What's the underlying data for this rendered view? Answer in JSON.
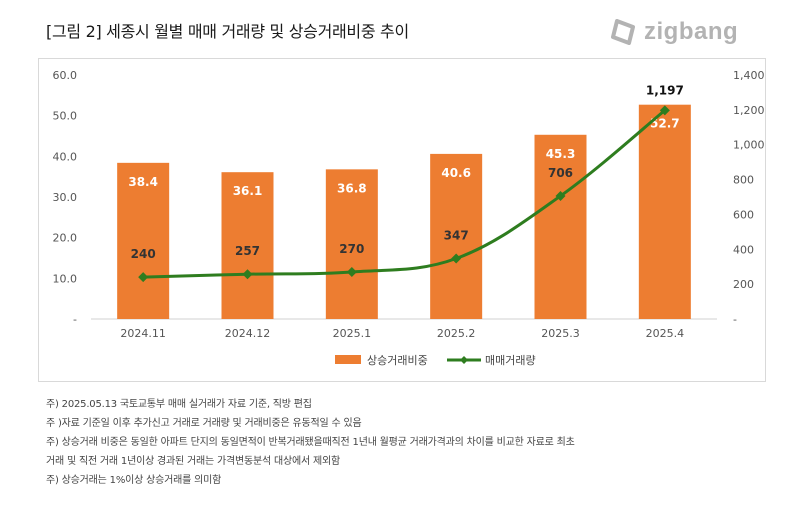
{
  "title": "[그림 2] 세종시 월별 매매 거래량 및 상승거래비중 추이",
  "logo": {
    "text": "zigbang",
    "icon": "zigbang-logo-icon"
  },
  "colors": {
    "bar": "#ed7d31",
    "line": "#2e7d1f"
  },
  "chart_data": {
    "type": "bar+line",
    "categories": [
      "2024.11",
      "2024.12",
      "2025.1",
      "2025.2",
      "2025.3",
      "2025.4"
    ],
    "series": [
      {
        "name": "상승거래비중",
        "type": "bar",
        "axis": "left",
        "values": [
          38.4,
          36.1,
          36.8,
          40.6,
          45.3,
          52.7
        ],
        "labels": [
          "38.4",
          "36.1",
          "36.8",
          "40.6",
          "45.3",
          "52.7"
        ]
      },
      {
        "name": "매매거래량",
        "type": "line",
        "axis": "right",
        "values": [
          240,
          257,
          270,
          347,
          706,
          1197
        ],
        "labels": [
          "240",
          "257",
          "270",
          "347",
          "706",
          "1,197"
        ]
      }
    ],
    "left_axis": {
      "ylim": [
        0,
        60
      ],
      "ticks": [
        "-",
        "10.0",
        "20.0",
        "30.0",
        "40.0",
        "50.0",
        "60.0"
      ]
    },
    "right_axis": {
      "ylim": [
        0,
        1400
      ],
      "ticks": [
        "-",
        "200",
        "400",
        "600",
        "800",
        "1,000",
        "1,200",
        "1,400"
      ]
    },
    "legend_position": "bottom",
    "grid": false
  },
  "notes": [
    "주) 2025.05.13 국토교통부 매매 실거래가 자료 기준, 직방 편집",
    "주 )자료 기준일 이후 추가신고 거래로 거래량 및 거래비중은 유동적일 수 있음",
    "주) 상승거래 비중은 동일한 아파트 단지의 동일면적이 반복거래됐을때직전 1년내 월평균 거래가격과의 차이를 비교한 자료로 최초",
    "거래 및 직전 거래 1년이상 경과된 거래는 가격변동분석 대상에서 제외함",
    "주) 상승거래는 1%이상 상승거래를 의미함"
  ]
}
